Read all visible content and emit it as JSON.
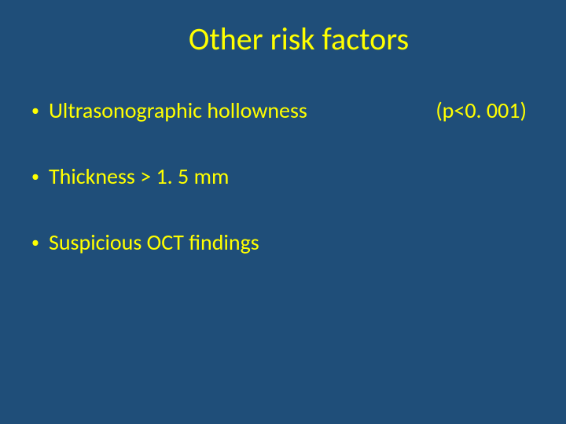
{
  "slide": {
    "title": "Other risk factors",
    "background_color": "#1f4e79",
    "text_color": "#ffff00",
    "title_fontsize": 40,
    "body_fontsize": 28,
    "bullets": [
      {
        "text": "Ultrasonographic hollowness",
        "p_value": "(p<0. 001)"
      },
      {
        "text": "Thickness > 1. 5 mm",
        "p_value": ""
      },
      {
        "text": "Suspicious OCT findings",
        "p_value": ""
      }
    ]
  }
}
